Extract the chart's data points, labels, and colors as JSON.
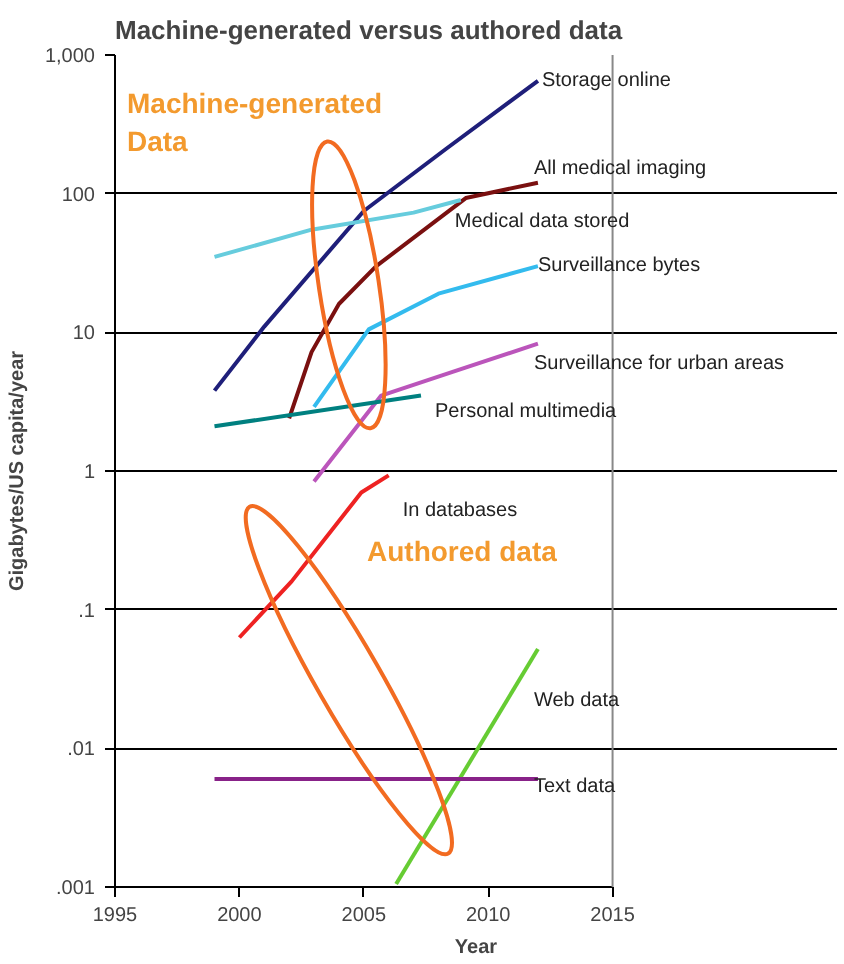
{
  "chart_data": {
    "type": "line",
    "title": "Machine-generated versus authored data",
    "xlabel": "Year",
    "ylabel": "Gigabytes/US capita/year",
    "log": "y",
    "grid": "y",
    "xlim": [
      1995,
      2015
    ],
    "xticks": [
      1995,
      2000,
      2005,
      2010,
      2015
    ],
    "ylim": [
      0.001,
      1000
    ],
    "yticks": [
      {
        "value": 0.001,
        "label": ".001"
      },
      {
        "value": 0.01,
        "label": ".01"
      },
      {
        "value": 0.1,
        "label": ".1"
      },
      1,
      10,
      100,
      {
        "value": 1000,
        "label": "1,000"
      }
    ],
    "annotations": [
      "Machine-generated\nData",
      "Authored data"
    ],
    "series": [
      {
        "name": "Storage online",
        "color": "#1f1f7a",
        "x": [
          1999,
          2001,
          2005,
          2008.3,
          2012
        ],
        "values": [
          3.8,
          11,
          75,
          210,
          650
        ]
      },
      {
        "name": "All medical imaging",
        "color": "#7a1010",
        "x": [
          2002,
          2002.9,
          2004,
          2005.5,
          2009.1,
          2012
        ],
        "values": [
          2.4,
          7.2,
          16,
          30,
          93,
          120
        ]
      },
      {
        "name": "Medical data stored",
        "color": "#66ccdd",
        "x": [
          1999,
          2002.9,
          2007,
          2008.9
        ],
        "values": [
          35,
          55,
          73,
          90
        ]
      },
      {
        "name": "Surveillance bytes",
        "color": "#33bbee",
        "x": [
          2003,
          2005.2,
          2008,
          2012
        ],
        "values": [
          2.9,
          10.5,
          19,
          30
        ]
      },
      {
        "name": "Surveillance for urban areas",
        "color": "#bb55bb",
        "x": [
          2003,
          2005.7,
          2008.6,
          2012
        ],
        "values": [
          0.84,
          3.5,
          5.2,
          8.3
        ]
      },
      {
        "name": "Personal multimedia",
        "color": "#008080",
        "x": [
          1999,
          2007.3
        ],
        "values": [
          2.1,
          3.5
        ]
      },
      {
        "name": "In databases",
        "color": "#ee2222",
        "x": [
          2000,
          2002.1,
          2004.9,
          2006
        ],
        "values": [
          0.063,
          0.16,
          0.7,
          0.93
        ]
      },
      {
        "name": "Web data",
        "color": "#66cc33",
        "x": [
          2006.3,
          2012
        ],
        "values": [
          0.00105,
          0.052
        ]
      },
      {
        "name": "Text data",
        "color": "#882288",
        "x": [
          1999,
          2012
        ],
        "values": [
          0.006,
          0.006
        ]
      }
    ]
  }
}
